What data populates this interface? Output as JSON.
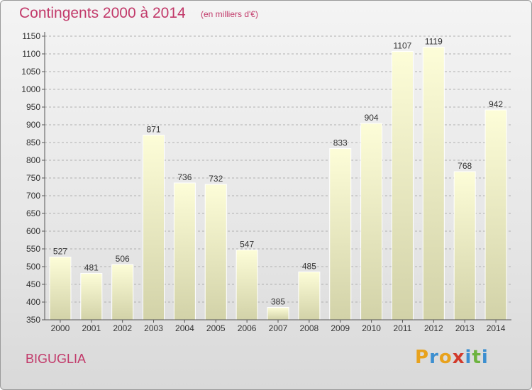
{
  "header": {
    "title": "Contingents 2000 à 2014",
    "subtitle": "(en milliers d'€)"
  },
  "commune": "BIGUGLIA",
  "logo": {
    "text": "Proxiti"
  },
  "colors": {
    "title": "#c23a6a",
    "bar_top": "#fdfdd8",
    "bar_bottom": "#d2d2a8",
    "axis": "#555555",
    "grid": "#b0b0b0"
  },
  "chart_data": {
    "type": "bar",
    "title": "Contingents 2000 à 2014",
    "subtitle": "(en milliers d'€)",
    "xlabel": "",
    "ylabel": "",
    "ylim": [
      350,
      1150
    ],
    "yticks": [
      350,
      400,
      450,
      500,
      550,
      600,
      650,
      700,
      750,
      800,
      850,
      900,
      950,
      1000,
      1050,
      1100,
      1150
    ],
    "grid": "horizontal dashed",
    "categories": [
      "2000",
      "2001",
      "2002",
      "2003",
      "2004",
      "2005",
      "2006",
      "2007",
      "2008",
      "2009",
      "2010",
      "2011",
      "2012",
      "2013",
      "2014"
    ],
    "values": [
      527,
      481,
      506,
      871,
      736,
      732,
      547,
      385,
      485,
      833,
      904,
      1107,
      1119,
      768,
      942
    ]
  }
}
